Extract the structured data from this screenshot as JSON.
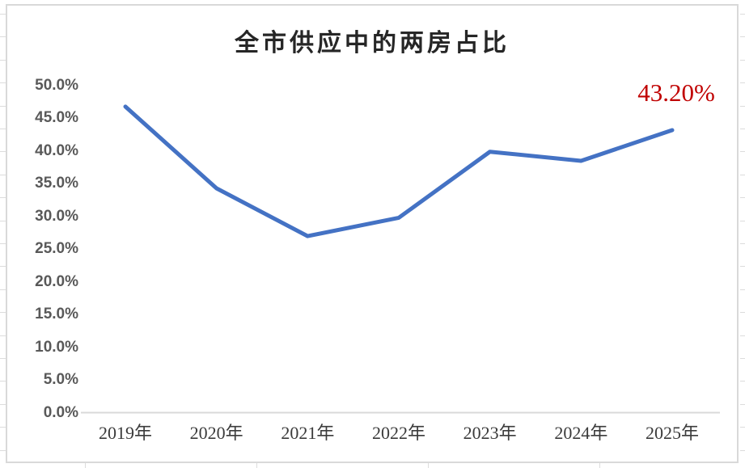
{
  "chart_data": {
    "type": "line",
    "title": "全市供应中的两房占比",
    "categories": [
      "2019年",
      "2020年",
      "2021年",
      "2022年",
      "2023年",
      "2024年",
      "2025年"
    ],
    "values": [
      46.8,
      34.3,
      27.0,
      29.8,
      39.9,
      38.5,
      43.2
    ],
    "ylim": [
      0,
      50
    ],
    "ytick_step": 5,
    "ytick_labels": [
      "0.0%",
      "5.0%",
      "10.0%",
      "15.0%",
      "20.0%",
      "25.0%",
      "30.0%",
      "35.0%",
      "40.0%",
      "45.0%",
      "50.0%"
    ],
    "grid": false,
    "legend": false,
    "line_color": "#4472C4",
    "axis_color": "#d9d9d9",
    "annotation": {
      "text": "43.20%",
      "color": "#C00000",
      "at_category": "2025年"
    }
  }
}
